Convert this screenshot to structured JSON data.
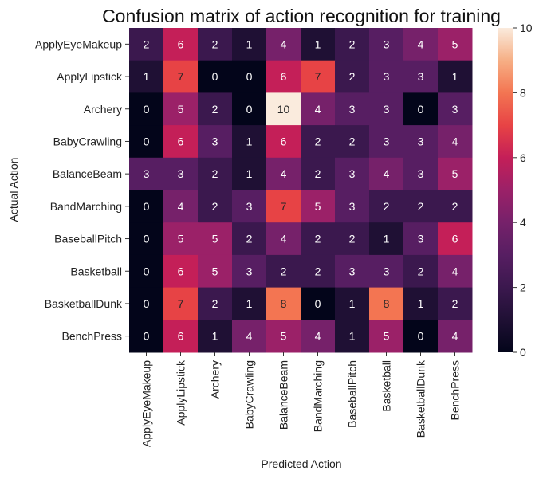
{
  "chart_data": {
    "type": "heatmap",
    "title": "Confusion matrix of action recognition for training",
    "xlabel": "Predicted Action",
    "ylabel": "Actual Action",
    "x_categories": [
      "ApplyEyeMakeup",
      "ApplyLipstick",
      "Archery",
      "BabyCrawling",
      "BalanceBeam",
      "BandMarching",
      "BaseballPitch",
      "Basketball",
      "BasketballDunk",
      "BenchPress"
    ],
    "y_categories": [
      "ApplyEyeMakeup",
      "ApplyLipstick",
      "Archery",
      "BabyCrawling",
      "BalanceBeam",
      "BandMarching",
      "BaseballPitch",
      "Basketball",
      "BasketballDunk",
      "BenchPress"
    ],
    "values": [
      [
        2,
        6,
        2,
        1,
        4,
        1,
        2,
        3,
        4,
        5
      ],
      [
        1,
        7,
        0,
        0,
        6,
        7,
        2,
        3,
        3,
        1
      ],
      [
        0,
        5,
        2,
        0,
        10,
        4,
        3,
        3,
        0,
        3
      ],
      [
        0,
        6,
        3,
        1,
        6,
        2,
        2,
        3,
        3,
        4
      ],
      [
        3,
        3,
        2,
        1,
        4,
        2,
        3,
        4,
        3,
        5
      ],
      [
        0,
        4,
        2,
        3,
        7,
        5,
        3,
        2,
        2,
        2
      ],
      [
        0,
        5,
        5,
        2,
        4,
        2,
        2,
        1,
        3,
        6
      ],
      [
        0,
        6,
        5,
        3,
        2,
        2,
        3,
        3,
        2,
        4
      ],
      [
        0,
        7,
        2,
        1,
        8,
        0,
        1,
        8,
        1,
        2
      ],
      [
        0,
        6,
        1,
        4,
        5,
        4,
        1,
        5,
        0,
        4
      ]
    ],
    "colorbar": {
      "range": [
        0,
        10
      ],
      "ticks": [
        0,
        2,
        4,
        6,
        8,
        10
      ]
    },
    "colormap": "rocket",
    "annotations": true
  }
}
